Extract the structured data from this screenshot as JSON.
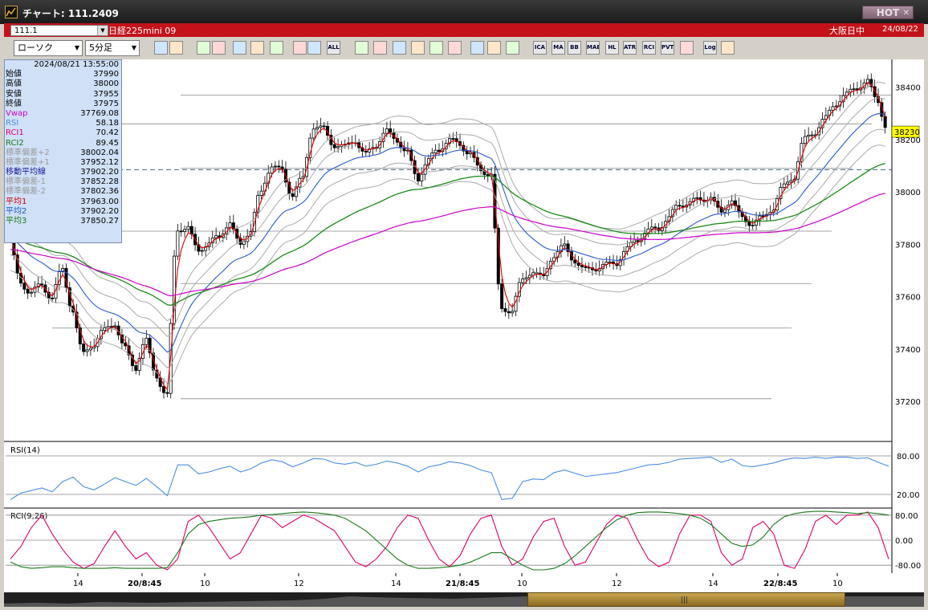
{
  "window": {
    "title": "チャート: 111.2409",
    "hot_label": "HOT"
  },
  "infobar": {
    "symbol_code": "111.1",
    "symbol_name": "日経225mini 09",
    "market": "大阪日中",
    "date": "24/08/22"
  },
  "toolbar": {
    "chart_type": "ローソク",
    "interval": "5分足",
    "buttons": [
      "zoom",
      "cross",
      "b1",
      "b2",
      "b3",
      "b4",
      "b5",
      "b6",
      "b7",
      "ALL",
      "line",
      "pen",
      "arrow",
      "arrow2",
      "doc",
      "trash",
      "cfg",
      "tool",
      "palette",
      "ICA",
      "MA",
      "BB",
      "MAE",
      "HL",
      "ATR",
      "RCI",
      "PVT",
      "box",
      "Log",
      "save"
    ]
  },
  "info_panel": {
    "timestamp": "2024/08/21  13:55:00",
    "rows": [
      {
        "label": "始値",
        "value": "37990",
        "color": "#000000"
      },
      {
        "label": "高値",
        "value": "38000",
        "color": "#000000"
      },
      {
        "label": "安値",
        "value": "37955",
        "color": "#000000"
      },
      {
        "label": "終値",
        "value": "37975",
        "color": "#000000"
      },
      {
        "label": "Vwap",
        "value": "37769.08",
        "color": "#cc00cc"
      },
      {
        "label": "RSI",
        "value": "58.18",
        "color": "#4a8ee6"
      },
      {
        "label": "RCI1",
        "value": "70.42",
        "color": "#e0006a"
      },
      {
        "label": "RCI2",
        "value": "89.45",
        "color": "#1a7a1a"
      },
      {
        "label": "標準偏差+2",
        "value": "38002.04",
        "color": "#999999"
      },
      {
        "label": "標準偏差+1",
        "value": "37952.12",
        "color": "#999999"
      },
      {
        "label": "移動平均線",
        "value": "37902.20",
        "color": "#1a1a9a"
      },
      {
        "label": "標準偏差-1",
        "value": "37852.28",
        "color": "#999999"
      },
      {
        "label": "標準偏差-2",
        "value": "37802.36",
        "color": "#999999"
      },
      {
        "label": "平均1",
        "value": "37963.00",
        "color": "#cc0000"
      },
      {
        "label": "平均2",
        "value": "37902.20",
        "color": "#1a5acc"
      },
      {
        "label": "平均3",
        "value": "37850.27",
        "color": "#1a7a1a"
      }
    ]
  },
  "chart_data": [
    {
      "type": "candlestick",
      "ylim": [
        37050,
        38500
      ],
      "y_ticks": [
        "38400",
        "38200",
        "38000",
        "37800",
        "37600",
        "37400",
        "37200"
      ],
      "x_ticks": [
        "14",
        "20/8:45",
        "10",
        "12",
        "14",
        "21/8:45",
        "10",
        "12",
        "14",
        "22/8:45",
        "10"
      ],
      "last_price": "38230",
      "close_path": [
        37820,
        37650,
        37620,
        37640,
        37600,
        37700,
        37550,
        37380,
        37420,
        37470,
        37500,
        37400,
        37330,
        37430,
        37300,
        37220,
        37860,
        37860,
        37780,
        37800,
        37830,
        37880,
        37800,
        37850,
        38000,
        38100,
        38080,
        37990,
        38050,
        38250,
        38240,
        38180,
        38170,
        38200,
        38140,
        38180,
        38230,
        38200,
        38150,
        38050,
        38120,
        38160,
        38200,
        38180,
        38150,
        38080,
        38070,
        37550,
        37550,
        37660,
        37700,
        37670,
        37760,
        37790,
        37740,
        37700,
        37710,
        37720,
        37730,
        37780,
        37820,
        37850,
        37860,
        37900,
        37950,
        37960,
        37970,
        37980,
        37920,
        37970,
        37900,
        37880,
        37900,
        37940,
        38020,
        38060,
        38200,
        38230,
        38280,
        38340,
        38370,
        38400,
        38420,
        38350,
        38230
      ]
    },
    {
      "type": "line",
      "title": "RSI(14)",
      "ylim": [
        0,
        100
      ],
      "y_ticks": [
        "80.00",
        "20.00"
      ],
      "series": [
        {
          "values": [
            12,
            22,
            26,
            30,
            24,
            40,
            47,
            32,
            27,
            36,
            46,
            40,
            34,
            45,
            32,
            18,
            66,
            66,
            52,
            55,
            60,
            64,
            55,
            60,
            69,
            74,
            71,
            63,
            69,
            76,
            75,
            69,
            67,
            70,
            64,
            67,
            72,
            69,
            64,
            55,
            63,
            66,
            71,
            69,
            65,
            58,
            54,
            12,
            14,
            40,
            44,
            43,
            54,
            58,
            53,
            48,
            50,
            52,
            54,
            58,
            62,
            66,
            67,
            70,
            75,
            76,
            77,
            78,
            70,
            75,
            65,
            63,
            66,
            69,
            74,
            77,
            76,
            78,
            76,
            78,
            78,
            76,
            77,
            70,
            64
          ]
        }
      ]
    },
    {
      "type": "line",
      "title": "RCI(9,26)",
      "ylim": [
        -100,
        100
      ],
      "y_ticks": [
        "80.00",
        "0.00",
        "-80.00"
      ],
      "series": [
        {
          "name": "RCI1",
          "values": [
            -60,
            -20,
            40,
            80,
            20,
            -30,
            -70,
            -90,
            -75,
            -20,
            30,
            -20,
            -60,
            -40,
            -80,
            -95,
            -60,
            60,
            80,
            40,
            -10,
            -60,
            -40,
            20,
            80,
            70,
            40,
            60,
            80,
            70,
            50,
            30,
            -20,
            -70,
            -85,
            -60,
            -20,
            40,
            80,
            70,
            0,
            -60,
            -85,
            -50,
            20,
            70,
            80,
            -20,
            -80,
            -60,
            10,
            60,
            70,
            -20,
            -80,
            -70,
            -10,
            50,
            80,
            70,
            0,
            -60,
            -85,
            -70,
            20,
            80,
            80,
            60,
            -40,
            -80,
            -60,
            40,
            60,
            20,
            -80,
            -90,
            -30,
            60,
            80,
            50,
            80,
            80,
            90,
            40,
            -60
          ]
        },
        {
          "name": "RCI2",
          "values": [
            -70,
            -85,
            -90,
            -88,
            -85,
            -85,
            -88,
            -90,
            -90,
            -90,
            -88,
            -90,
            -90,
            -90,
            -90,
            -88,
            -40,
            20,
            50,
            60,
            65,
            70,
            72,
            75,
            80,
            82,
            85,
            88,
            90,
            88,
            85,
            80,
            70,
            50,
            30,
            0,
            -30,
            -60,
            -80,
            -90,
            -90,
            -88,
            -85,
            -80,
            -70,
            -55,
            -40,
            -40,
            -60,
            -80,
            -95,
            -95,
            -90,
            -75,
            -50,
            -20,
            10,
            40,
            65,
            80,
            88,
            90,
            90,
            88,
            85,
            80,
            70,
            50,
            20,
            -10,
            -20,
            -15,
            10,
            50,
            75,
            85,
            90,
            92,
            92,
            90,
            88,
            85,
            88,
            85,
            80
          ]
        }
      ]
    }
  ]
}
